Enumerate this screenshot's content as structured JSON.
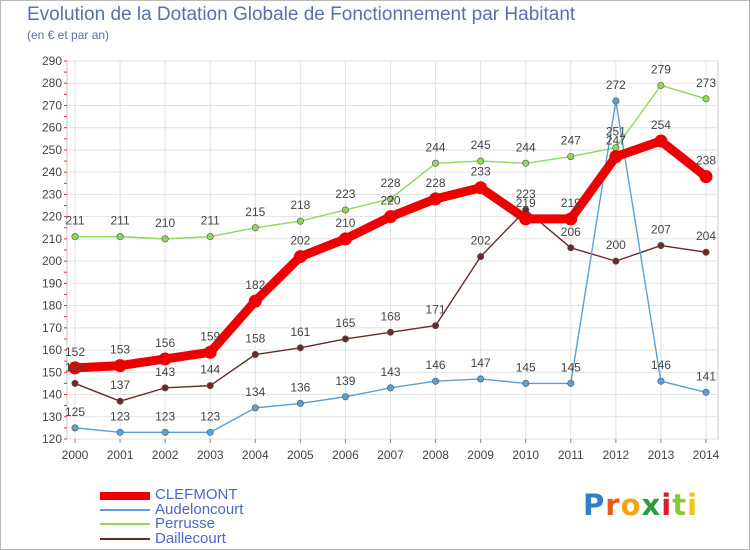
{
  "title": "Evolution de la Dotation Globale de Fonctionnement par Habitant",
  "subtitle": "(en € et par an)",
  "brand": {
    "letters": [
      {
        "ch": "P",
        "color": "#2f7fd0"
      },
      {
        "ch": "r",
        "color": "#e85a1c"
      },
      {
        "ch": "o",
        "color": "#f2a31b"
      },
      {
        "ch": "x",
        "color": "#2f9b3a"
      },
      {
        "ch": "i",
        "color": "#d61f2c"
      },
      {
        "ch": "t",
        "color": "#8cc63e"
      },
      {
        "ch": "i",
        "color": "#f0c419"
      }
    ]
  },
  "chart_data": {
    "type": "line",
    "title": "Evolution de la Dotation Globale de Fonctionnement par Habitant",
    "subtitle": "(en € et par an)",
    "x": [
      "2000",
      "2001",
      "2002",
      "2003",
      "2004",
      "2005",
      "2006",
      "2007",
      "2008",
      "2009",
      "2010",
      "2011",
      "2012",
      "2013",
      "2014"
    ],
    "ylim": [
      120,
      290
    ],
    "yticks": [
      120,
      130,
      140,
      150,
      160,
      170,
      180,
      190,
      200,
      210,
      220,
      230,
      240,
      250,
      260,
      270,
      280,
      290
    ],
    "grid": true,
    "legend_position": "bottom-left",
    "series": [
      {
        "name": "CLEFMONT",
        "color": "#ee0000",
        "values": [
          152,
          153,
          156,
          159,
          182,
          202,
          210,
          220,
          228,
          233,
          219,
          219,
          247,
          254,
          238
        ]
      },
      {
        "name": "Audeloncourt",
        "color": "#5a9fd8",
        "values": [
          125,
          123,
          123,
          123,
          134,
          136,
          139,
          143,
          146,
          147,
          145,
          145,
          272,
          146,
          141
        ]
      },
      {
        "name": "Perrusse",
        "color": "#8ed85a",
        "values": [
          211,
          211,
          210,
          211,
          215,
          218,
          223,
          228,
          244,
          245,
          244,
          247,
          251,
          279,
          273
        ]
      },
      {
        "name": "Daillecourt",
        "color": "#6b2a2a",
        "values": [
          145,
          137,
          143,
          144,
          158,
          161,
          165,
          168,
          171,
          202,
          223,
          206,
          200,
          207,
          204
        ]
      }
    ]
  }
}
